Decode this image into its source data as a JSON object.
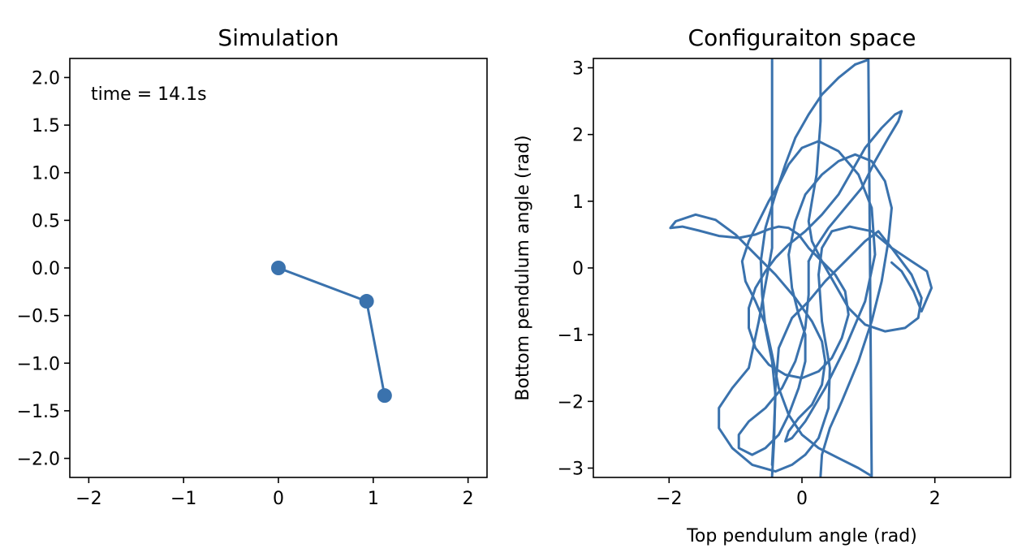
{
  "colors": {
    "series": "#3a72ad",
    "axes": "#000000",
    "background": "#ffffff"
  },
  "chart_data": [
    {
      "type": "line",
      "title": "Simulation",
      "xlabel": "",
      "ylabel": "",
      "xlim": [
        -2.2,
        2.2
      ],
      "ylim": [
        -2.2,
        2.2
      ],
      "xticks": [
        -2,
        -1,
        0,
        1,
        2
      ],
      "xtick_labels": [
        "−2",
        "−1",
        "0",
        "1",
        "2"
      ],
      "yticks": [
        -2.0,
        -1.5,
        -1.0,
        -0.5,
        0.0,
        0.5,
        1.0,
        1.5,
        2.0
      ],
      "ytick_labels": [
        "−2.0",
        "−1.5",
        "−1.0",
        "−0.5",
        "0.0",
        "0.5",
        "1.0",
        "1.5",
        "2.0"
      ],
      "annotation": "time = 14.1s",
      "grid": false,
      "series": [
        {
          "x": [
            0.0,
            0.93,
            1.12
          ],
          "y": [
            0.0,
            -0.35,
            -1.34
          ],
          "markers": true
        }
      ]
    },
    {
      "type": "line",
      "title": "Configuraiton space",
      "xlabel": "Top pendulum angle (rad)",
      "ylabel": "Bottom pendulum angle (rad)",
      "xlim": [
        -3.14,
        3.14
      ],
      "ylim": [
        -3.14,
        3.14
      ],
      "xticks": [
        -2,
        0,
        2
      ],
      "xtick_labels": [
        "−2",
        "0",
        "2"
      ],
      "yticks": [
        -3,
        -2,
        -1,
        0,
        1,
        2,
        3
      ],
      "ytick_labels": [
        "−3",
        "−2",
        "−1",
        "0",
        "1",
        "2",
        "3"
      ],
      "grid": false,
      "series": [
        {
          "x": [
            1.35,
            1.5,
            1.68,
            1.8,
            1.95,
            1.88,
            1.65,
            1.35,
            1.05,
            0.72,
            0.45,
            0.3,
            0.25,
            0.3,
            0.42,
            0.4,
            0.25,
            0.05,
            -0.15,
            -0.4,
            -0.75,
            -1.05,
            -1.25,
            -1.25,
            -1.05,
            -0.8,
            -0.65,
            -0.45,
            -0.45
          ],
          "y": [
            0.08,
            -0.05,
            -0.35,
            -0.65,
            -0.3,
            -0.05,
            0.1,
            0.3,
            0.55,
            0.62,
            0.55,
            0.3,
            -0.1,
            -0.8,
            -1.5,
            -2.1,
            -2.55,
            -2.8,
            -2.95,
            -3.05,
            -2.95,
            -2.7,
            -2.4,
            -2.1,
            -1.8,
            -1.5,
            -0.8,
            0.3,
            3.12
          ]
        },
        {
          "x": [
            -0.45,
            -0.42,
            -0.4,
            -0.35,
            -0.15,
            0.1,
            0.35,
            0.65,
            0.95,
            1.15,
            1.35,
            1.65,
            1.8,
            1.75,
            1.55,
            1.25,
            0.95,
            0.7,
            0.5,
            0.3,
            0.15,
            0.1,
            0.15,
            0.22,
            0.28,
            0.28
          ],
          "y": [
            -3.12,
            -2.6,
            -1.8,
            -1.2,
            -0.75,
            -0.5,
            -0.2,
            0.1,
            0.4,
            0.55,
            0.3,
            -0.1,
            -0.45,
            -0.75,
            -0.9,
            -0.95,
            -0.85,
            -0.6,
            -0.25,
            0.1,
            0.4,
            0.7,
            1.0,
            1.4,
            2.2,
            3.12
          ]
        },
        {
          "x": [
            0.28,
            0.3,
            0.42,
            0.6,
            0.85,
            1.05,
            1.2,
            1.3,
            1.35,
            1.25,
            1.05,
            0.8,
            0.55,
            0.3,
            0.05,
            -0.1,
            -0.2,
            -0.15,
            -0.05,
            0.05,
            0.05,
            -0.05,
            -0.2,
            -0.35,
            -0.55,
            -0.75,
            -0.95,
            -0.95,
            -0.8,
            -0.55,
            -0.3,
            -0.1,
            0.05,
            0.1,
            0.1
          ],
          "y": [
            -3.12,
            -2.8,
            -2.4,
            -2.0,
            -1.4,
            -0.8,
            -0.2,
            0.4,
            0.9,
            1.3,
            1.6,
            1.7,
            1.6,
            1.4,
            1.1,
            0.7,
            0.2,
            -0.3,
            -0.7,
            -1.0,
            -1.4,
            -1.8,
            -2.2,
            -2.5,
            -2.7,
            -2.8,
            -2.7,
            -2.5,
            -2.3,
            -2.1,
            -1.8,
            -1.4,
            -0.9,
            -0.4,
            0.1
          ]
        },
        {
          "x": [
            0.1,
            0.2,
            0.4,
            0.65,
            0.9,
            1.1,
            1.3,
            1.45,
            1.5,
            1.4,
            1.2,
            0.95,
            0.75,
            0.55,
            0.3,
            0.05,
            -0.2,
            -0.4,
            -0.55,
            -0.7,
            -0.8,
            -0.8,
            -0.7,
            -0.5,
            -0.25,
            0.0,
            0.25,
            0.45,
            0.6,
            0.7,
            0.65,
            0.5,
            0.3,
            0.1,
            -0.05
          ],
          "y": [
            0.1,
            0.3,
            0.6,
            0.9,
            1.2,
            1.6,
            1.95,
            2.2,
            2.35,
            2.3,
            2.1,
            1.8,
            1.45,
            1.1,
            0.8,
            0.55,
            0.35,
            0.15,
            -0.05,
            -0.3,
            -0.6,
            -0.9,
            -1.2,
            -1.45,
            -1.6,
            -1.65,
            -1.55,
            -1.35,
            -1.05,
            -0.7,
            -0.35,
            -0.1,
            0.1,
            0.3,
            0.5
          ]
        },
        {
          "x": [
            -0.05,
            -0.2,
            -0.35,
            -0.5,
            -0.7,
            -0.95,
            -1.25,
            -1.55,
            -1.8,
            -1.98,
            -1.9,
            -1.6,
            -1.3,
            -1.0,
            -0.7,
            -0.4,
            -0.1,
            0.15,
            0.3,
            0.35,
            0.3,
            0.15,
            -0.05,
            -0.2,
            -0.25,
            -0.15,
            0.05,
            0.35,
            0.65,
            0.95,
            1.1,
            1.05,
            0.85,
            0.55,
            0.25,
            0.0,
            -0.2,
            -0.35
          ],
          "y": [
            0.5,
            0.6,
            0.62,
            0.58,
            0.5,
            0.45,
            0.48,
            0.56,
            0.62,
            0.6,
            0.7,
            0.8,
            0.72,
            0.5,
            0.2,
            -0.1,
            -0.45,
            -0.8,
            -1.1,
            -1.4,
            -1.75,
            -2.05,
            -2.25,
            -2.45,
            -2.6,
            -2.55,
            -2.3,
            -1.8,
            -1.2,
            -0.5,
            0.2,
            0.9,
            1.4,
            1.75,
            1.9,
            1.8,
            1.55,
            1.25
          ]
        },
        {
          "x": [
            -0.35,
            -0.5,
            -0.65,
            -0.8,
            -0.9,
            -0.85,
            -0.7,
            -0.55,
            -0.45,
            -0.35,
            -0.2,
            0.0,
            0.25,
            0.55,
            0.85,
            1.05,
            1.0,
            0.8
          ],
          "y": [
            1.25,
            1.0,
            0.7,
            0.4,
            0.1,
            -0.2,
            -0.5,
            -0.85,
            -1.3,
            -1.8,
            -2.2,
            -2.5,
            -2.7,
            -2.85,
            -3.0,
            -3.12,
            3.12,
            3.05
          ]
        },
        {
          "x": [
            0.8,
            0.55,
            0.3,
            0.1,
            -0.1,
            -0.25,
            -0.4,
            -0.55,
            -0.62,
            -0.6,
            -0.55,
            -0.45,
            -0.4,
            -0.42,
            -0.45
          ],
          "y": [
            3.05,
            2.85,
            2.6,
            2.3,
            1.95,
            1.55,
            1.1,
            0.6,
            0.1,
            -0.4,
            -0.9,
            -1.4,
            -1.9,
            -2.4,
            -2.95
          ]
        }
      ]
    }
  ]
}
